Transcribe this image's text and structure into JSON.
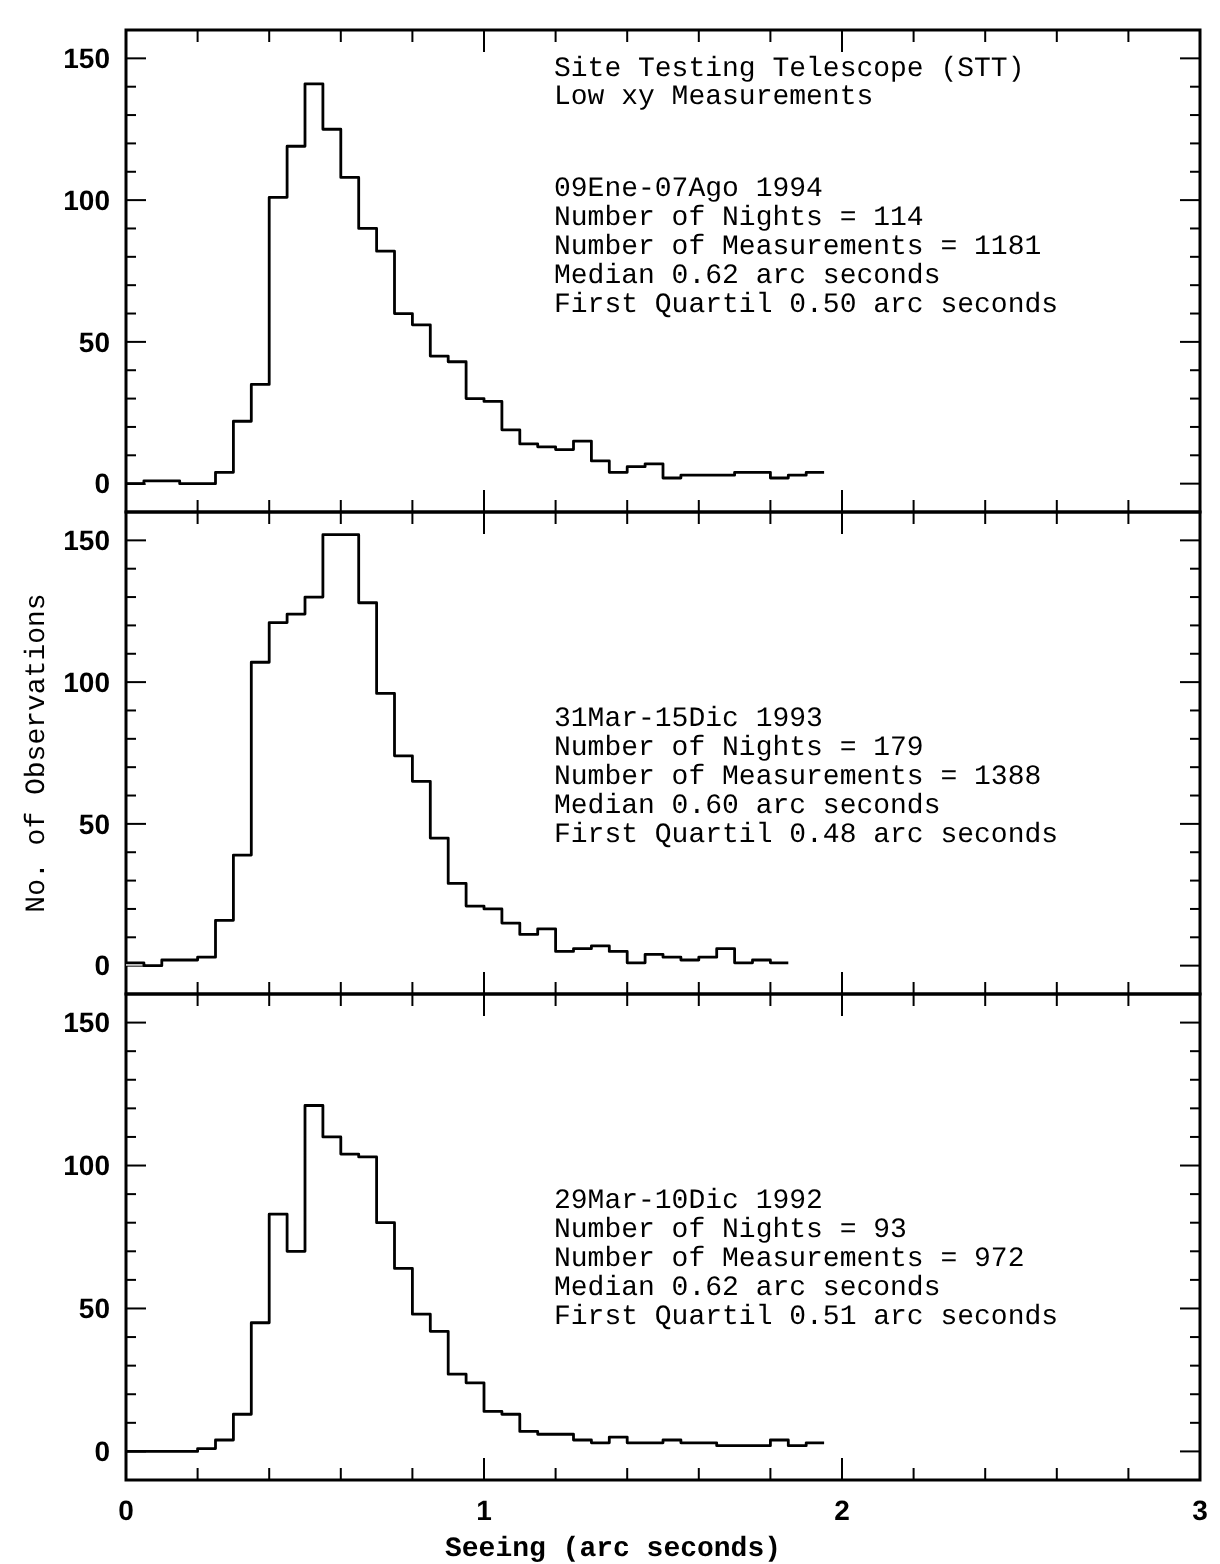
{
  "chart_data": [
    {
      "type": "histogram",
      "title": "Site Testing Telescope (STT)",
      "subtitle": "Low xy Measurements",
      "annotations": [
        "09Ene-07Ago 1994",
        "Number of Nights = 114",
        "Number of Measurements = 1181",
        "Median 0.62 arc seconds",
        "First Quartil 0.50 arc seconds"
      ],
      "bins": [
        0,
        0.05,
        0.1,
        0.15,
        0.2,
        0.25,
        0.3,
        0.35,
        0.4,
        0.45,
        0.5,
        0.55,
        0.6,
        0.65,
        0.7,
        0.75,
        0.8,
        0.85,
        0.9,
        0.95,
        1,
        1.05,
        1.1,
        1.15,
        1.2,
        1.25,
        1.3,
        1.35,
        1.4,
        1.45,
        1.5,
        1.55,
        1.6,
        1.65,
        1.7,
        1.75,
        1.8,
        1.85,
        1.9,
        1.95
      ],
      "values": [
        0,
        1,
        1,
        0,
        0,
        4,
        22,
        35,
        101,
        119,
        141,
        125,
        108,
        90,
        82,
        60,
        56,
        45,
        43,
        30,
        29,
        19,
        14,
        13,
        12,
        15,
        8,
        4,
        6,
        7,
        2,
        3,
        3,
        3,
        4,
        4,
        2,
        3,
        4
      ],
      "color": "#000000",
      "xlim": [
        0,
        3
      ],
      "ylim": [
        -10,
        160
      ],
      "xticks": [
        {
          "value": 0,
          "label": null
        },
        {
          "value": 0.2,
          "label": null
        },
        {
          "value": 0.4,
          "label": null
        },
        {
          "value": 0.6,
          "label": null
        },
        {
          "value": 0.8,
          "label": null
        },
        {
          "value": 1,
          "label": null
        },
        {
          "value": 1.2,
          "label": null
        },
        {
          "value": 1.4,
          "label": null
        },
        {
          "value": 1.6,
          "label": null
        },
        {
          "value": 1.8,
          "label": null
        },
        {
          "value": 2,
          "label": null
        },
        {
          "value": 2.2,
          "label": null
        },
        {
          "value": 2.4,
          "label": null
        },
        {
          "value": 2.6,
          "label": null
        },
        {
          "value": 2.8,
          "label": null
        },
        {
          "value": 3,
          "label": null
        }
      ],
      "yticks": [
        0,
        {
          "value": 10,
          "label": null
        },
        {
          "value": 20,
          "label": null
        },
        {
          "value": 30,
          "label": null
        },
        {
          "value": 40,
          "label": null
        },
        50,
        {
          "value": 60,
          "label": null
        },
        {
          "value": 70,
          "label": null
        },
        {
          "value": 80,
          "label": null
        },
        {
          "value": 90,
          "label": null
        },
        100,
        {
          "value": 110,
          "label": null
        },
        {
          "value": 120,
          "label": null
        },
        {
          "value": 130,
          "label": null
        },
        {
          "value": 140,
          "label": null
        },
        150
      ],
      "tick_labels": "y",
      "grid": false
    },
    {
      "type": "histogram",
      "ylabel": "No. of Observations",
      "annotations": [
        "31Mar-15Dic 1993",
        "Number of Nights = 179",
        "Number of Measurements = 1388",
        "Median 0.60 arc seconds",
        "First Quartil 0.48 arc seconds"
      ],
      "bins": [
        0,
        0.05,
        0.1,
        0.15,
        0.2,
        0.25,
        0.3,
        0.35,
        0.4,
        0.45,
        0.5,
        0.55,
        0.6,
        0.65,
        0.7,
        0.75,
        0.8,
        0.85,
        0.9,
        0.95,
        1,
        1.05,
        1.1,
        1.15,
        1.2,
        1.25,
        1.3,
        1.35,
        1.4,
        1.45,
        1.5,
        1.55,
        1.6,
        1.65,
        1.7,
        1.75,
        1.8,
        1.85
      ],
      "values": [
        1,
        0,
        2,
        2,
        3,
        16,
        39,
        107,
        121,
        124,
        130,
        152,
        152,
        128,
        96,
        74,
        65,
        45,
        29,
        21,
        20,
        15,
        11,
        13,
        5,
        6,
        7,
        5,
        1,
        4,
        3,
        2,
        3,
        6,
        1,
        2,
        1
      ],
      "color": "#000000",
      "xlim": [
        0,
        3
      ],
      "ylim": [
        -10,
        160
      ],
      "xticks": [
        {
          "value": 0,
          "label": null
        },
        {
          "value": 0.2,
          "label": null
        },
        {
          "value": 0.4,
          "label": null
        },
        {
          "value": 0.6,
          "label": null
        },
        {
          "value": 0.8,
          "label": null
        },
        {
          "value": 1,
          "label": null
        },
        {
          "value": 1.2,
          "label": null
        },
        {
          "value": 1.4,
          "label": null
        },
        {
          "value": 1.6,
          "label": null
        },
        {
          "value": 1.8,
          "label": null
        },
        {
          "value": 2,
          "label": null
        },
        {
          "value": 2.2,
          "label": null
        },
        {
          "value": 2.4,
          "label": null
        },
        {
          "value": 2.6,
          "label": null
        },
        {
          "value": 2.8,
          "label": null
        },
        {
          "value": 3,
          "label": null
        }
      ],
      "yticks": [
        0,
        {
          "value": 10,
          "label": null
        },
        {
          "value": 20,
          "label": null
        },
        {
          "value": 30,
          "label": null
        },
        {
          "value": 40,
          "label": null
        },
        50,
        {
          "value": 60,
          "label": null
        },
        {
          "value": 70,
          "label": null
        },
        {
          "value": 80,
          "label": null
        },
        {
          "value": 90,
          "label": null
        },
        100,
        {
          "value": 110,
          "label": null
        },
        {
          "value": 120,
          "label": null
        },
        {
          "value": 130,
          "label": null
        },
        {
          "value": 140,
          "label": null
        },
        150
      ],
      "tick_labels": "y",
      "grid": false
    },
    {
      "type": "histogram",
      "xlabel": "Seeing (arc seconds)",
      "annotations": [
        "29Mar-10Dic 1992",
        "Number of Nights = 93",
        "Number of Measurements = 972",
        "Median 0.62 arc seconds",
        "First Quartil 0.51 arc seconds"
      ],
      "bins": [
        0,
        0.05,
        0.1,
        0.15,
        0.2,
        0.25,
        0.3,
        0.35,
        0.4,
        0.45,
        0.5,
        0.55,
        0.6,
        0.65,
        0.7,
        0.75,
        0.8,
        0.85,
        0.9,
        0.95,
        1,
        1.05,
        1.1,
        1.15,
        1.2,
        1.25,
        1.3,
        1.35,
        1.4,
        1.45,
        1.5,
        1.55,
        1.6,
        1.65,
        1.7,
        1.75,
        1.8,
        1.85,
        1.9,
        1.95
      ],
      "values": [
        0,
        0,
        0,
        0,
        1,
        4,
        13,
        45,
        83,
        70,
        121,
        110,
        104,
        103,
        80,
        64,
        48,
        42,
        27,
        24,
        14,
        13,
        7,
        6,
        6,
        4,
        3,
        5,
        3,
        3,
        4,
        3,
        3,
        2,
        2,
        2,
        4,
        2,
        3
      ],
      "color": "#000000",
      "xlim": [
        0,
        3
      ],
      "ylim": [
        -10,
        160
      ],
      "xticks": [
        0,
        {
          "value": 0.2,
          "label": null
        },
        {
          "value": 0.4,
          "label": null
        },
        {
          "value": 0.6,
          "label": null
        },
        {
          "value": 0.8,
          "label": null
        },
        1,
        {
          "value": 1.2,
          "label": null
        },
        {
          "value": 1.4,
          "label": null
        },
        {
          "value": 1.6,
          "label": null
        },
        {
          "value": 1.8,
          "label": null
        },
        2,
        {
          "value": 2.2,
          "label": null
        },
        {
          "value": 2.4,
          "label": null
        },
        {
          "value": 2.6,
          "label": null
        },
        {
          "value": 2.8,
          "label": null
        },
        3
      ],
      "yticks": [
        0,
        {
          "value": 10,
          "label": null
        },
        {
          "value": 20,
          "label": null
        },
        {
          "value": 30,
          "label": null
        },
        {
          "value": 40,
          "label": null
        },
        50,
        {
          "value": 60,
          "label": null
        },
        {
          "value": 70,
          "label": null
        },
        {
          "value": 80,
          "label": null
        },
        {
          "value": 90,
          "label": null
        },
        100,
        {
          "value": 110,
          "label": null
        },
        {
          "value": 120,
          "label": null
        },
        {
          "value": 130,
          "label": null
        },
        {
          "value": 140,
          "label": null
        },
        150
      ],
      "grid": false
    }
  ]
}
